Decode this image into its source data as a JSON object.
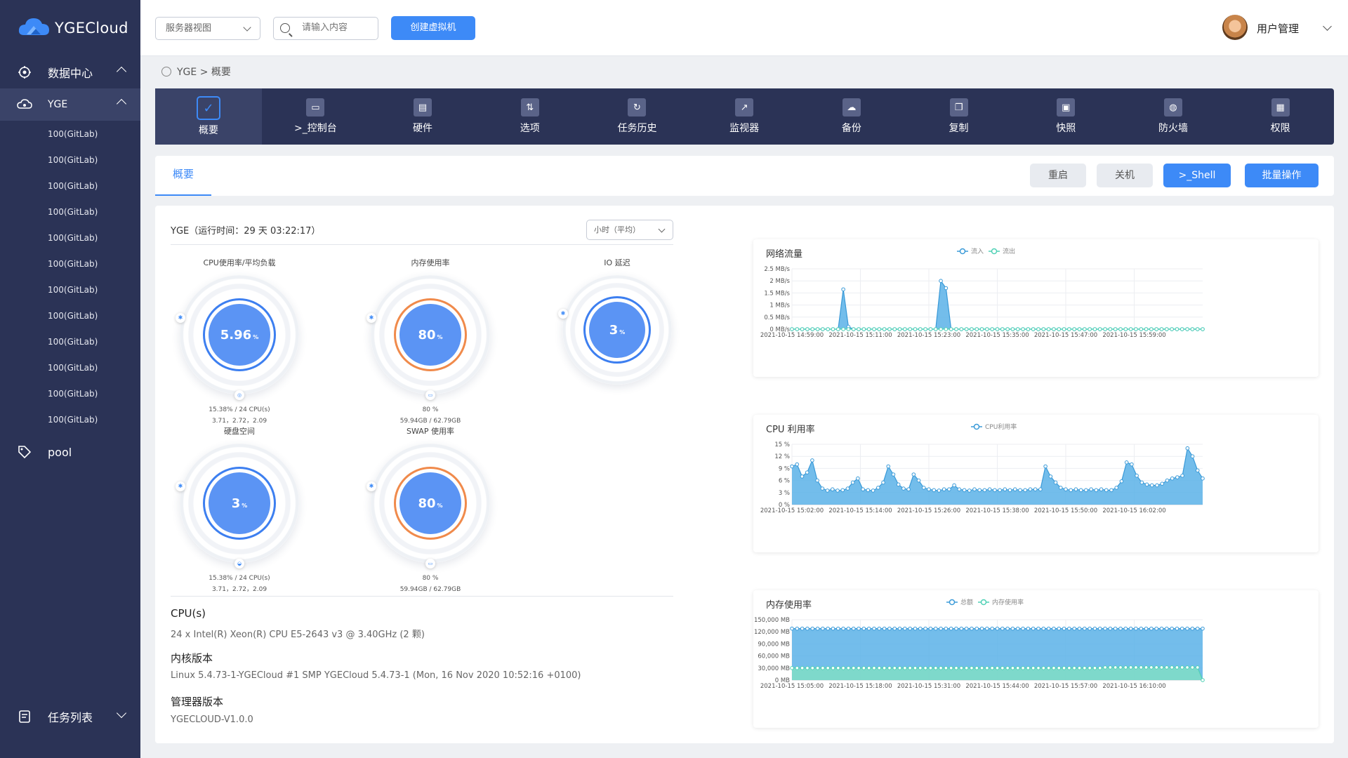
{
  "app": {
    "name": "YGECloud"
  },
  "sidebar": {
    "datacenter_label": "数据中心",
    "yge_label": "YGE",
    "vms": [
      "100(GitLab)",
      "100(GitLab)",
      "100(GitLab)",
      "100(GitLab)",
      "100(GitLab)",
      "100(GitLab)",
      "100(GitLab)",
      "100(GitLab)",
      "100(GitLab)",
      "100(GitLab)",
      "100(GitLab)",
      "100(GitLab)"
    ],
    "pool_label": "pool",
    "task_label": "任务列表"
  },
  "topbar": {
    "view_select": "服务器视图",
    "search_placeholder": "请输入内容",
    "create_vm": "创建虚拟机",
    "user_menu": "用户管理"
  },
  "breadcrumb": {
    "text": "YGE > 概要"
  },
  "toolbar": {
    "items": [
      "概要",
      ">_控制台",
      "硬件",
      "选项",
      "任务历史",
      "监视器",
      "备份",
      "复制",
      "快照",
      "防火墙",
      "权限"
    ]
  },
  "tabbar": {
    "active_tab": "概要",
    "restart": "重启",
    "shutdown": "关机",
    "shell": ">_Shell",
    "batch": "批量操作"
  },
  "summary": {
    "title": "YGE（运行时间：29 天 03:22:17）",
    "interval": "小时（平均）",
    "gauges": [
      {
        "title": "CPU使用率/平均负载",
        "value": "5.96",
        "unit": "%",
        "line1": "15.38% / 24 CPU(s)",
        "line2": "3.71，2.72，2.09",
        "color": "blue"
      },
      {
        "title": "内存使用率",
        "value": "80",
        "unit": "%",
        "line1": "80 %",
        "line2": "59.94GB / 62.79GB",
        "color": "orange"
      },
      {
        "title": "IO 延迟",
        "value": "3",
        "unit": "%",
        "line1": "",
        "line2": "",
        "color": "blue"
      },
      {
        "title": "硬盘空间",
        "value": "3",
        "unit": "%",
        "line1": "15.38% / 24 CPU(s)",
        "line2": "3.71，2.72，2.09",
        "color": "blue"
      },
      {
        "title": "SWAP 使用率",
        "value": "80",
        "unit": "%",
        "line1": "80 %",
        "line2": "59.94GB / 62.79GB",
        "color": "orange"
      }
    ],
    "cpu_label": "CPU(s)",
    "cpu_value": "24 x Intel(R) Xeon(R) CPU E5-2643 v3 @ 3.40GHz (2 颗)",
    "kernel_label": "内核版本",
    "kernel_value": "Linux 5.4.73-1-YGECloud #1 SMP YGECloud 5.4.73-1 (Mon, 16 Nov 2020 10:52:16 +0100)",
    "manager_label": "管理器版本",
    "manager_value": "YGECLOUD-V1.0.0"
  },
  "chart_data": [
    {
      "type": "area",
      "title": "网络流量",
      "legend": [
        "流入",
        "流出"
      ],
      "y_ticks": [
        "0 MB/s",
        "0.5 MB/s",
        "1 MB/s",
        "1.5 MB/s",
        "2 MB/s",
        "2.5 MB/s"
      ],
      "ylim": [
        0,
        2.5
      ],
      "x_ticks": [
        "2021-10-15 14:59:00",
        "2021-10-15 15:11:00",
        "2021-10-15 15:23:00",
        "2021-10-15 15:35:00",
        "2021-10-15 15:47:00",
        "2021-10-15 15:59:00"
      ],
      "series": [
        {
          "name": "流入",
          "values": [
            0,
            0,
            0,
            0,
            0,
            0,
            0,
            0,
            0,
            0,
            1.65,
            0.1,
            0,
            0,
            0,
            0,
            0,
            0,
            0,
            0,
            0,
            0,
            0,
            0,
            0,
            0,
            0,
            0,
            0,
            2.0,
            1.7,
            0,
            0,
            0,
            0,
            0,
            0,
            0,
            0,
            0,
            0,
            0,
            0,
            0,
            0,
            0,
            0,
            0,
            0,
            0,
            0,
            0,
            0,
            0,
            0,
            0,
            0,
            0,
            0,
            0,
            0,
            0,
            0,
            0,
            0,
            0,
            0,
            0,
            0,
            0,
            0,
            0,
            0,
            0,
            0,
            0,
            0,
            0,
            0,
            0,
            0
          ]
        },
        {
          "name": "流出",
          "values": [
            0,
            0,
            0,
            0,
            0,
            0,
            0,
            0,
            0,
            0,
            0,
            0,
            0,
            0,
            0,
            0,
            0,
            0,
            0,
            0,
            0,
            0,
            0,
            0,
            0,
            0,
            0,
            0,
            0,
            0,
            0,
            0,
            0,
            0,
            0,
            0,
            0,
            0,
            0,
            0,
            0,
            0,
            0,
            0,
            0,
            0,
            0,
            0,
            0,
            0,
            0,
            0,
            0,
            0,
            0,
            0,
            0,
            0,
            0,
            0,
            0,
            0,
            0,
            0,
            0,
            0,
            0,
            0,
            0,
            0,
            0,
            0,
            0,
            0,
            0,
            0,
            0,
            0,
            0,
            0,
            0
          ]
        }
      ]
    },
    {
      "type": "area",
      "title": "CPU 利用率",
      "legend": [
        "CPU利用率"
      ],
      "y_ticks": [
        "0 %",
        "3 %",
        "6 %",
        "9 %",
        "12 %",
        "15 %"
      ],
      "ylim": [
        0,
        15
      ],
      "x_ticks": [
        "2021-10-15 15:02:00",
        "2021-10-15 15:14:00",
        "2021-10-15 15:26:00",
        "2021-10-15 15:38:00",
        "2021-10-15 15:50:00",
        "2021-10-15 16:02:00"
      ],
      "series": [
        {
          "name": "CPU利用率",
          "values": [
            9.5,
            10,
            7,
            8,
            11,
            6,
            4,
            3.5,
            3.8,
            3.5,
            3.6,
            4,
            5.5,
            6.5,
            3.8,
            3.6,
            3.5,
            4.2,
            5.5,
            9.5,
            7.5,
            5,
            4,
            3.8,
            7.5,
            6,
            4.2,
            3.8,
            3.6,
            3.5,
            3.8,
            3.8,
            4.8,
            3.8,
            3.6,
            3.5,
            3.8,
            3.6,
            3.6,
            3.8,
            3.6,
            3.6,
            3.8,
            3.6,
            3.8,
            3.6,
            3.6,
            3.8,
            3.8,
            3.8,
            9.5,
            7,
            5.5,
            4.2,
            3.8,
            3.6,
            3.8,
            3.6,
            3.6,
            3.8,
            3.6,
            3.8,
            3.6,
            3.6,
            4.2,
            5.8,
            10.5,
            10,
            7.2,
            5.5,
            5,
            4.8,
            4.8,
            5.2,
            6,
            6.5,
            6.8,
            7.2,
            14,
            12,
            8.5,
            6.5
          ]
        }
      ]
    },
    {
      "type": "area",
      "title": "内存使用率",
      "legend": [
        "总额",
        "内存使用率"
      ],
      "y_ticks": [
        "0 MB",
        "30,000 MB",
        "60,000 MB",
        "90,000 MB",
        "120,000 MB",
        "150,000 MB"
      ],
      "ylim": [
        0,
        150000
      ],
      "x_ticks": [
        "2021-10-15 15:05:00",
        "2021-10-15 15:18:00",
        "2021-10-15 15:31:00",
        "2021-10-15 15:44:00",
        "2021-10-15 15:57:00",
        "2021-10-15 16:10:00"
      ],
      "series": [
        {
          "name": "总额",
          "values": [
            128000,
            128000,
            128000,
            128000,
            128000,
            128000,
            128000,
            128000,
            128000,
            128000,
            128000,
            128000,
            128000,
            128000,
            128000,
            128000,
            128000,
            128000,
            128000,
            128000,
            128000,
            128000,
            128000,
            128000,
            128000,
            128000,
            128000,
            128000,
            128000,
            128000,
            128000,
            128000,
            128000,
            128000,
            128000,
            128000,
            128000,
            128000,
            128000,
            128000,
            128000,
            128000,
            128000,
            128000,
            128000,
            128000,
            128000,
            128000,
            128000,
            128000,
            128000,
            128000,
            128000,
            128000,
            128000,
            128000,
            128000,
            128000,
            128000,
            128000,
            128000,
            128000,
            128000,
            128000,
            128000,
            128000,
            128000,
            128000,
            128000,
            128000,
            128000,
            128000,
            128000,
            128000,
            128000,
            128000,
            128000,
            128000,
            128000,
            128000,
            128000
          ]
        },
        {
          "name": "内存使用率",
          "values": [
            30000,
            30000,
            30000,
            30000,
            30000,
            30000,
            30000,
            30000,
            30000,
            30000,
            30000,
            30000,
            30000,
            30000,
            30000,
            30000,
            30000,
            30000,
            30000,
            30000,
            30000,
            30000,
            30000,
            30000,
            30000,
            30000,
            30000,
            30000,
            30000,
            30000,
            30000,
            30000,
            30000,
            30000,
            30000,
            30000,
            30000,
            30000,
            30000,
            30000,
            30000,
            30000,
            30000,
            30000,
            30000,
            30000,
            30000,
            30000,
            30000,
            30000,
            30000,
            30000,
            30000,
            30000,
            30000,
            30000,
            30000,
            30000,
            30000,
            30000,
            30000,
            31500,
            31500,
            31500,
            31500,
            31500,
            31500,
            31500,
            31500,
            31500,
            31500,
            31500,
            31500,
            31500,
            31500,
            31500,
            31500,
            31500,
            31500,
            31500,
            0
          ]
        }
      ]
    }
  ]
}
